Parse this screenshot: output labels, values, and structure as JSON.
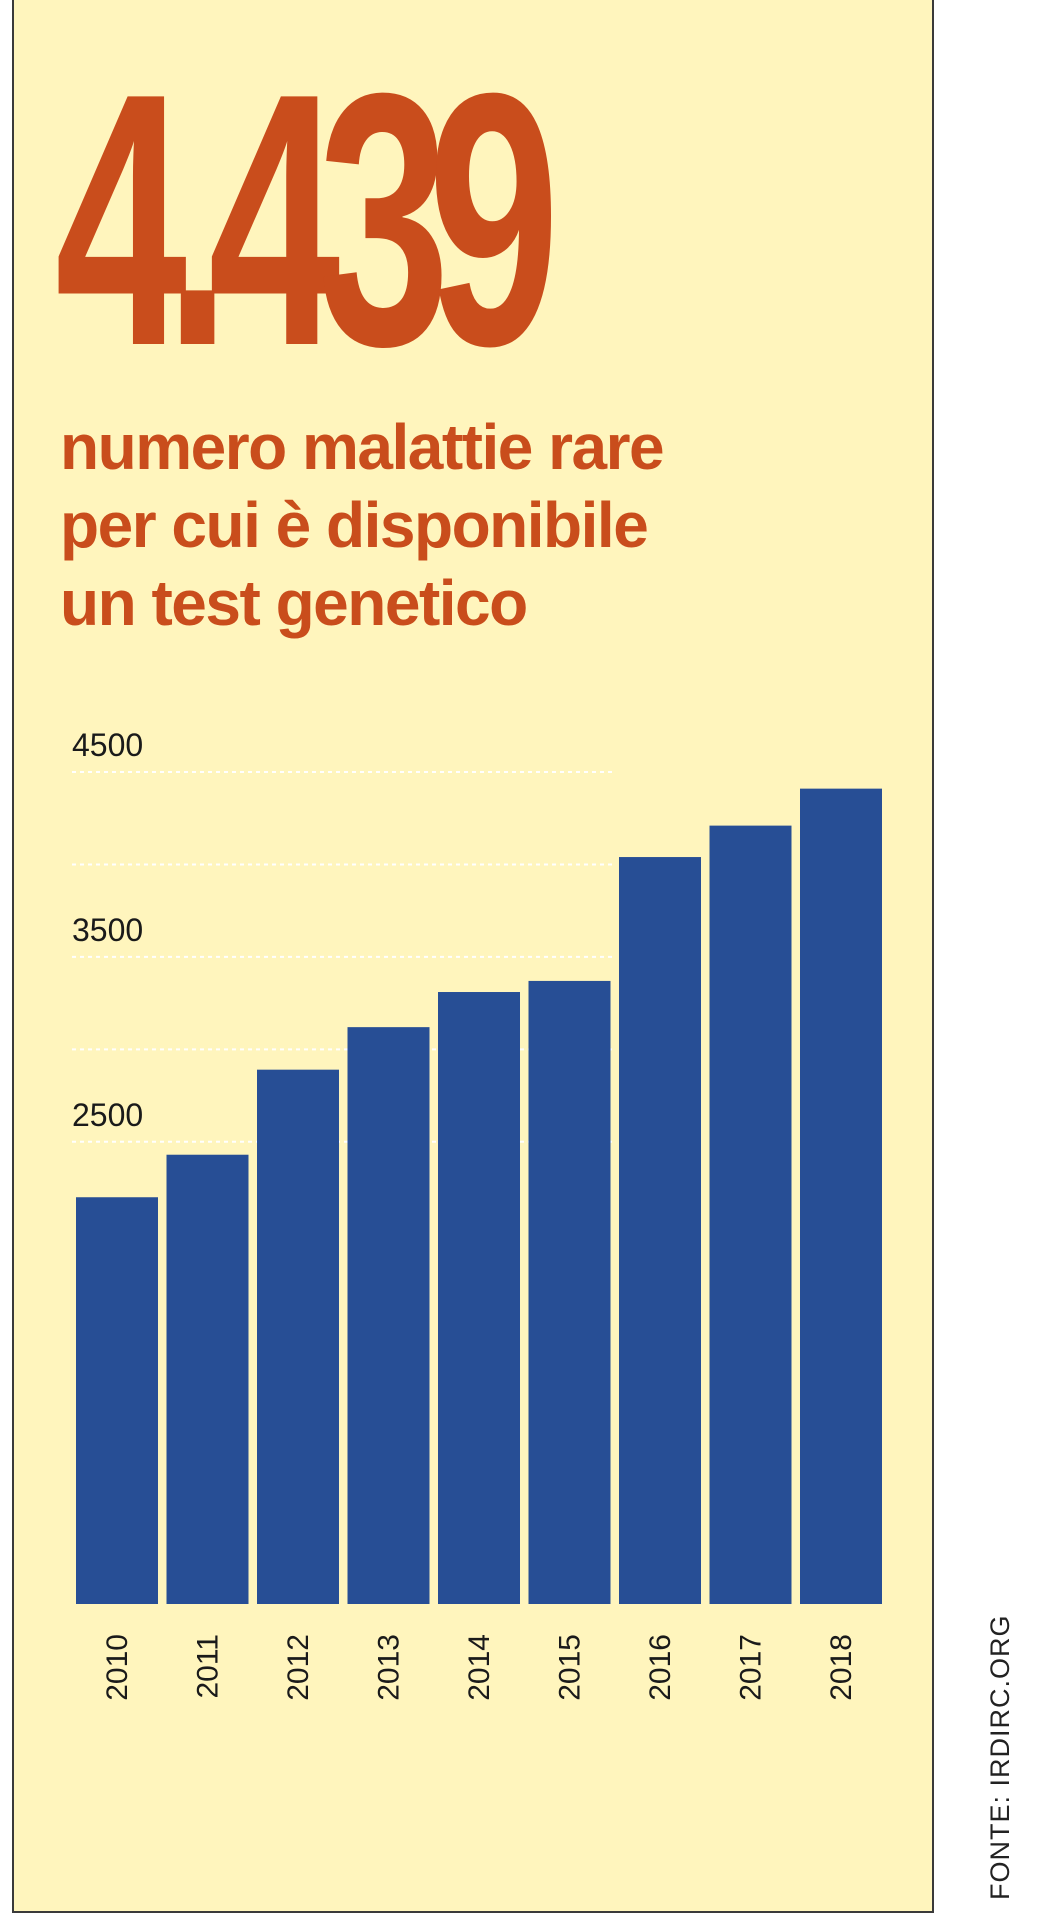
{
  "colors": {
    "accent": "#c94d1c",
    "bar": "#274e95",
    "background": "#fff5bd",
    "text": "#1a1a1a",
    "grid": "#ffffff"
  },
  "headline": {
    "number": "4.439",
    "subtitle_lines": [
      "numero malattie rare",
      "per cui è disponibile",
      "un test genetico"
    ]
  },
  "source": "FONTE: IRDIRC.ORG",
  "chart_data": {
    "type": "bar",
    "categories": [
      "2010",
      "2011",
      "2012",
      "2013",
      "2014",
      "2015",
      "2016",
      "2017",
      "2018"
    ],
    "values": [
      2200,
      2430,
      2890,
      3120,
      3310,
      3370,
      4040,
      4210,
      4410
    ],
    "ylim": [
      0,
      4500
    ],
    "yticks": [
      2500,
      3500,
      4500
    ],
    "gridlines": [
      2500,
      3000,
      3500,
      4000,
      4500
    ],
    "title": "",
    "xlabel": "",
    "ylabel": ""
  }
}
